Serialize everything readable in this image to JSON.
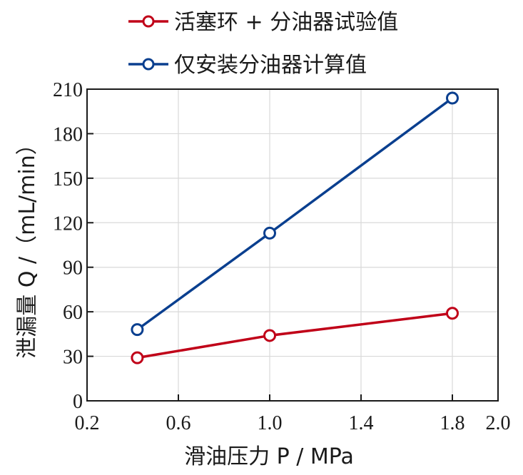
{
  "chart_data": {
    "type": "line",
    "xlabel": "滑油压力 P / MPa",
    "ylabel": "泄漏量 Q /（mL/min）",
    "xlim": [
      0.2,
      2.0
    ],
    "ylim": [
      0,
      210
    ],
    "xticks": [
      0.2,
      0.6,
      1.0,
      1.4,
      1.8,
      2.0
    ],
    "xtick_labels": [
      "0.2",
      "0.6",
      "1.0",
      "1.4",
      "1.8",
      "2.0"
    ],
    "yticks": [
      0,
      30,
      60,
      90,
      120,
      150,
      180,
      210
    ],
    "ytick_labels": [
      "0",
      "30",
      "60",
      "90",
      "120",
      "150",
      "180",
      "210"
    ],
    "grid": true,
    "legend_position": "top",
    "series": [
      {
        "name": "活塞环 + 分油器试验值",
        "color": "#c00018",
        "marker": "hollow-circle",
        "x": [
          0.42,
          1.0,
          1.8
        ],
        "y": [
          29,
          44,
          59
        ]
      },
      {
        "name": "仅安装分油器计算值",
        "color": "#0a3f8f",
        "marker": "hollow-circle",
        "x": [
          0.42,
          1.0,
          1.8
        ],
        "y": [
          48,
          113,
          204
        ]
      }
    ]
  }
}
